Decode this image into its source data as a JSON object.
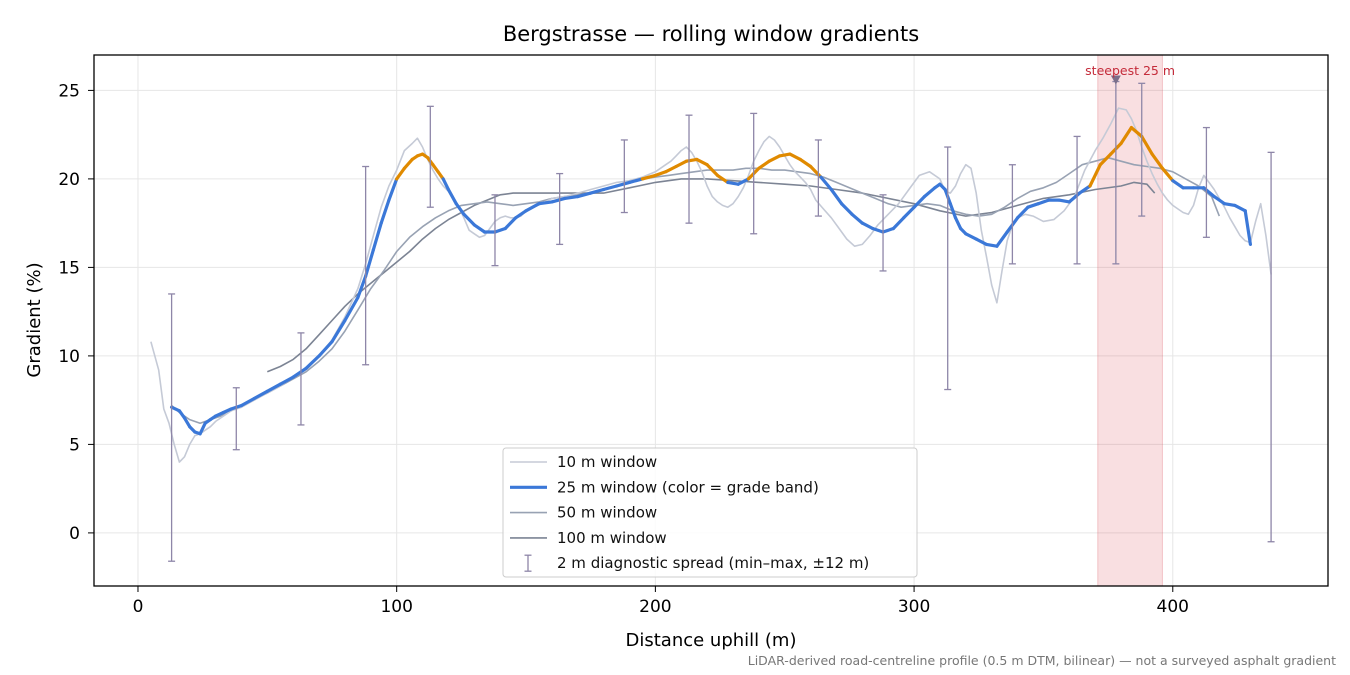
{
  "chart_data": {
    "type": "line",
    "title": "Bergstrasse — rolling window gradients",
    "xlabel": "Distance uphill (m)",
    "ylabel": "Gradient (%)",
    "xlim": [
      -17,
      460
    ],
    "ylim": [
      -3,
      27
    ],
    "xticks": [
      0,
      100,
      200,
      300,
      400
    ],
    "yticks": [
      0,
      5,
      10,
      15,
      20,
      25
    ],
    "grid": true,
    "legend_position": "bottom-center",
    "footnote": "LiDAR-derived road-centreline profile (0.5 m DTM, bilinear) — not a surveyed asphalt gradient",
    "highlight": {
      "x_range": [
        371,
        396
      ],
      "label": "steepest 25 m",
      "marker_x": 378,
      "marker_y": 25.5,
      "color": "#d9434f"
    },
    "grade_bands": {
      "threshold": 20,
      "below_color": "#3b78d8",
      "above_color": "#e08a00"
    },
    "series": [
      {
        "name": "10 m window",
        "color": "#c5cad6",
        "width": 1.6,
        "x": [
          5,
          8,
          10,
          12,
          14,
          16,
          18,
          20,
          22,
          24,
          26,
          28,
          30,
          33,
          36,
          40,
          45,
          50,
          55,
          60,
          65,
          70,
          75,
          80,
          85,
          88,
          91,
          94,
          97,
          100,
          103,
          106,
          108,
          110,
          112,
          114,
          116,
          118,
          120,
          122,
          124,
          126,
          128,
          130,
          132,
          134,
          136,
          138,
          140,
          142,
          144,
          146,
          148,
          150,
          153,
          156,
          160,
          165,
          170,
          175,
          180,
          185,
          190,
          195,
          200,
          204,
          206,
          208,
          210,
          212,
          214,
          216,
          218,
          220,
          222,
          224,
          226,
          228,
          230,
          232,
          234,
          236,
          238,
          240,
          242,
          244,
          246,
          248,
          250,
          252,
          254,
          256,
          258,
          260,
          262,
          265,
          268,
          271,
          274,
          277,
          280,
          283,
          286,
          290,
          294,
          298,
          302,
          306,
          310,
          312,
          314,
          316,
          318,
          320,
          322,
          324,
          326,
          328,
          330,
          332,
          334,
          336,
          338,
          340,
          343,
          346,
          350,
          354,
          358,
          362,
          366,
          370,
          373,
          376,
          379,
          382,
          384,
          386,
          388,
          390,
          392,
          394,
          396,
          398,
          400,
          402,
          404,
          406,
          408,
          410,
          412,
          414,
          416,
          418,
          420,
          422,
          424,
          426,
          428,
          430,
          432,
          434,
          436,
          438
        ],
        "y": [
          10.8,
          9.2,
          7.0,
          6.2,
          5.0,
          4.0,
          4.3,
          5.0,
          5.5,
          5.6,
          5.8,
          6.0,
          6.3,
          6.6,
          6.9,
          7.1,
          7.5,
          7.9,
          8.3,
          8.8,
          9.2,
          10.0,
          10.9,
          12.2,
          13.8,
          15.2,
          16.8,
          18.4,
          19.6,
          20.5,
          21.6,
          22.0,
          22.3,
          21.8,
          21.1,
          20.5,
          20.0,
          19.6,
          19.3,
          18.8,
          18.4,
          17.8,
          17.1,
          16.9,
          16.7,
          16.8,
          17.2,
          17.6,
          17.8,
          17.9,
          17.8,
          17.8,
          17.9,
          18.2,
          18.4,
          18.6,
          18.9,
          19.0,
          19.2,
          19.4,
          19.6,
          19.8,
          19.9,
          20.1,
          20.4,
          20.8,
          21.0,
          21.3,
          21.6,
          21.8,
          21.5,
          21.0,
          20.4,
          19.6,
          19.0,
          18.7,
          18.5,
          18.4,
          18.6,
          19.0,
          19.5,
          20.2,
          21.0,
          21.6,
          22.1,
          22.4,
          22.2,
          21.8,
          21.3,
          20.8,
          20.4,
          20.1,
          19.8,
          19.4,
          18.8,
          18.3,
          17.8,
          17.2,
          16.6,
          16.2,
          16.3,
          16.8,
          17.4,
          18.0,
          18.6,
          19.4,
          20.2,
          20.4,
          20.0,
          19.3,
          19.2,
          19.6,
          20.3,
          20.8,
          20.6,
          19.2,
          17.1,
          15.6,
          14.0,
          13.0,
          14.8,
          16.5,
          17.4,
          17.8,
          18.0,
          17.9,
          17.6,
          17.7,
          18.2,
          19.0,
          20.5,
          21.6,
          22.3,
          23.1,
          24.0,
          23.9,
          23.4,
          22.7,
          21.8,
          21.0,
          20.3,
          19.7,
          19.2,
          18.8,
          18.5,
          18.3,
          18.1,
          18.0,
          18.5,
          19.5,
          20.2,
          19.8,
          19.4,
          18.9,
          18.4,
          17.8,
          17.3,
          16.8,
          16.5,
          16.4,
          17.6,
          18.6,
          16.8,
          14.6
        ]
      },
      {
        "name": "25 m window (color = grade band)",
        "color": "#3b78d8",
        "width": 3.2,
        "x": [
          13,
          16,
          18,
          20,
          22,
          24,
          26,
          28,
          30,
          33,
          36,
          40,
          45,
          50,
          55,
          60,
          65,
          70,
          75,
          80,
          85,
          88,
          91,
          94,
          97,
          100,
          103,
          106,
          108,
          110,
          112,
          114,
          116,
          118,
          120,
          123,
          126,
          130,
          134,
          138,
          142,
          146,
          150,
          155,
          160,
          165,
          170,
          175,
          180,
          185,
          190,
          195,
          200,
          204,
          208,
          212,
          216,
          220,
          224,
          228,
          232,
          236,
          240,
          244,
          248,
          252,
          256,
          260,
          264,
          268,
          272,
          276,
          280,
          284,
          288,
          292,
          296,
          300,
          304,
          308,
          310,
          312,
          314,
          316,
          318,
          320,
          324,
          328,
          332,
          336,
          340,
          344,
          348,
          352,
          356,
          360,
          364,
          368,
          372,
          376,
          380,
          384,
          388,
          392,
          396,
          400,
          404,
          408,
          412,
          416,
          420,
          424,
          428,
          430
        ],
        "y": [
          7.1,
          6.9,
          6.5,
          6.0,
          5.7,
          5.6,
          6.2,
          6.4,
          6.6,
          6.8,
          7.0,
          7.2,
          7.6,
          8.0,
          8.4,
          8.8,
          9.3,
          10.0,
          10.8,
          12.0,
          13.3,
          14.5,
          16.0,
          17.5,
          18.8,
          20.0,
          20.6,
          21.1,
          21.3,
          21.4,
          21.2,
          20.8,
          20.4,
          20.0,
          19.4,
          18.6,
          18.0,
          17.4,
          17.0,
          17.0,
          17.2,
          17.8,
          18.2,
          18.6,
          18.7,
          18.9,
          19.0,
          19.2,
          19.4,
          19.6,
          19.8,
          20.0,
          20.2,
          20.4,
          20.7,
          21.0,
          21.1,
          20.8,
          20.2,
          19.8,
          19.7,
          20.0,
          20.6,
          21.0,
          21.3,
          21.4,
          21.1,
          20.7,
          20.1,
          19.4,
          18.6,
          18.0,
          17.5,
          17.2,
          17.0,
          17.2,
          17.8,
          18.4,
          19.0,
          19.5,
          19.7,
          19.4,
          18.6,
          17.8,
          17.2,
          16.9,
          16.6,
          16.3,
          16.2,
          17.0,
          17.8,
          18.4,
          18.6,
          18.8,
          18.8,
          18.7,
          19.2,
          19.6,
          20.8,
          21.4,
          22.0,
          22.9,
          22.4,
          21.4,
          20.6,
          19.9,
          19.5,
          19.5,
          19.5,
          19.0,
          18.6,
          18.5,
          18.2,
          16.3
        ]
      },
      {
        "name": "50 m window",
        "color": "#98a2b3",
        "width": 1.6,
        "x": [
          13,
          16,
          20,
          24,
          28,
          32,
          36,
          40,
          45,
          50,
          55,
          60,
          65,
          70,
          75,
          80,
          85,
          90,
          95,
          100,
          105,
          110,
          115,
          120,
          125,
          130,
          135,
          140,
          145,
          150,
          155,
          160,
          165,
          170,
          175,
          180,
          185,
          190,
          195,
          200,
          205,
          210,
          215,
          220,
          225,
          230,
          235,
          240,
          245,
          250,
          255,
          260,
          265,
          270,
          275,
          280,
          285,
          290,
          295,
          300,
          305,
          310,
          315,
          320,
          325,
          330,
          335,
          340,
          345,
          350,
          355,
          360,
          365,
          370,
          375,
          380,
          385,
          390,
          395,
          400,
          405,
          410,
          415,
          418
        ],
        "y": [
          7.2,
          6.8,
          6.4,
          6.2,
          6.4,
          6.6,
          6.9,
          7.2,
          7.6,
          7.9,
          8.3,
          8.7,
          9.1,
          9.7,
          10.4,
          11.4,
          12.6,
          13.8,
          14.8,
          15.9,
          16.7,
          17.3,
          17.8,
          18.2,
          18.5,
          18.6,
          18.7,
          18.6,
          18.5,
          18.6,
          18.7,
          18.9,
          19.0,
          19.1,
          19.2,
          19.4,
          19.6,
          19.8,
          20.0,
          20.1,
          20.2,
          20.3,
          20.4,
          20.5,
          20.5,
          20.5,
          20.6,
          20.6,
          20.5,
          20.5,
          20.4,
          20.3,
          20.1,
          19.8,
          19.5,
          19.2,
          18.9,
          18.6,
          18.4,
          18.5,
          18.6,
          18.5,
          18.2,
          18.0,
          17.9,
          18.0,
          18.4,
          18.9,
          19.3,
          19.5,
          19.8,
          20.3,
          20.8,
          21.0,
          21.2,
          21.0,
          20.8,
          20.7,
          20.6,
          20.4,
          20.0,
          19.6,
          19.0,
          17.9
        ]
      },
      {
        "name": "100 m window",
        "color": "#7c8494",
        "width": 1.6,
        "x": [
          50,
          55,
          60,
          65,
          70,
          75,
          80,
          85,
          90,
          95,
          100,
          105,
          110,
          115,
          120,
          125,
          130,
          135,
          140,
          145,
          150,
          160,
          170,
          180,
          190,
          200,
          210,
          220,
          230,
          240,
          250,
          260,
          270,
          280,
          290,
          300,
          310,
          320,
          330,
          340,
          350,
          360,
          370,
          380,
          385,
          390,
          393
        ],
        "y": [
          9.1,
          9.4,
          9.8,
          10.4,
          11.2,
          12.0,
          12.8,
          13.5,
          14.1,
          14.7,
          15.3,
          15.9,
          16.6,
          17.2,
          17.7,
          18.1,
          18.5,
          18.8,
          19.1,
          19.2,
          19.2,
          19.2,
          19.2,
          19.2,
          19.5,
          19.8,
          20.0,
          20.0,
          19.9,
          19.8,
          19.7,
          19.6,
          19.4,
          19.2,
          18.9,
          18.6,
          18.2,
          17.9,
          18.1,
          18.5,
          18.9,
          19.1,
          19.4,
          19.6,
          19.8,
          19.7,
          19.2
        ]
      }
    ],
    "spread": {
      "name": "2 m diagnostic spread (min–max, ±12 m)",
      "color": "#8e86a8",
      "x": [
        13,
        38,
        63,
        88,
        113,
        138,
        163,
        188,
        213,
        238,
        263,
        288,
        313,
        338,
        363,
        378,
        388,
        413,
        438
      ],
      "min": [
        -1.6,
        4.7,
        6.1,
        9.5,
        18.4,
        15.1,
        16.3,
        18.1,
        17.5,
        16.9,
        17.9,
        14.8,
        8.1,
        15.2,
        15.2,
        15.2,
        17.9,
        16.7,
        -0.5
      ],
      "max": [
        13.5,
        8.2,
        11.3,
        20.7,
        24.1,
        19.1,
        20.3,
        22.2,
        23.6,
        23.7,
        22.2,
        19.1,
        21.8,
        20.8,
        22.4,
        25.5,
        25.4,
        22.9,
        21.5
      ]
    }
  }
}
